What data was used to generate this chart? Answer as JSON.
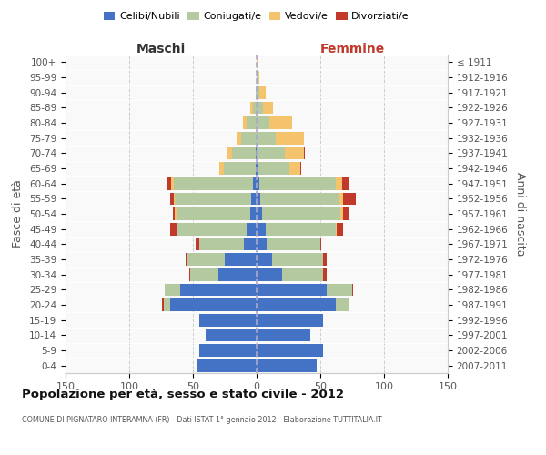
{
  "age_groups": [
    "0-4",
    "5-9",
    "10-14",
    "15-19",
    "20-24",
    "25-29",
    "30-34",
    "35-39",
    "40-44",
    "45-49",
    "50-54",
    "55-59",
    "60-64",
    "65-69",
    "70-74",
    "75-79",
    "80-84",
    "85-89",
    "90-94",
    "95-99",
    "100+"
  ],
  "birth_years": [
    "2007-2011",
    "2002-2006",
    "1997-2001",
    "1992-1996",
    "1987-1991",
    "1982-1986",
    "1977-1981",
    "1972-1976",
    "1967-1971",
    "1962-1966",
    "1957-1961",
    "1952-1956",
    "1947-1951",
    "1942-1946",
    "1937-1941",
    "1932-1936",
    "1927-1931",
    "1922-1926",
    "1917-1921",
    "1912-1916",
    "≤ 1911"
  ],
  "maschi_celibe": [
    47,
    45,
    40,
    45,
    68,
    60,
    30,
    25,
    10,
    8,
    5,
    4,
    3,
    1,
    1,
    0,
    0,
    0,
    0,
    0,
    0
  ],
  "maschi_coniugato": [
    0,
    0,
    0,
    0,
    5,
    12,
    22,
    30,
    35,
    55,
    58,
    60,
    62,
    25,
    18,
    12,
    8,
    3,
    1,
    0,
    0
  ],
  "maschi_vedovo": [
    0,
    0,
    0,
    0,
    0,
    0,
    0,
    0,
    0,
    0,
    1,
    1,
    2,
    3,
    4,
    4,
    3,
    2,
    0,
    0,
    0
  ],
  "maschi_divorziato": [
    0,
    0,
    0,
    0,
    1,
    0,
    1,
    1,
    3,
    5,
    2,
    3,
    3,
    0,
    0,
    0,
    0,
    0,
    0,
    0,
    0
  ],
  "femmine_nubile": [
    47,
    52,
    42,
    52,
    62,
    55,
    20,
    12,
    8,
    7,
    4,
    3,
    2,
    1,
    0,
    0,
    0,
    0,
    0,
    0,
    0
  ],
  "femmine_coniugata": [
    0,
    0,
    0,
    0,
    10,
    20,
    32,
    40,
    42,
    55,
    62,
    62,
    60,
    25,
    22,
    15,
    10,
    5,
    2,
    1,
    0
  ],
  "femmine_vedova": [
    0,
    0,
    0,
    0,
    0,
    0,
    0,
    0,
    0,
    1,
    2,
    3,
    5,
    8,
    15,
    22,
    18,
    8,
    5,
    1,
    1
  ],
  "femmine_divorziata": [
    0,
    0,
    0,
    0,
    0,
    1,
    3,
    3,
    1,
    5,
    4,
    10,
    5,
    1,
    1,
    0,
    0,
    0,
    0,
    0,
    0
  ],
  "color_celibe": "#4472c4",
  "color_coniugato": "#b5c9a0",
  "color_vedovo": "#f5c36b",
  "color_divorziato": "#c0392b",
  "title": "Popolazione per età, sesso e stato civile - 2012",
  "subtitle": "COMUNE DI PIGNATARO INTERAMNA (FR) - Dati ISTAT 1° gennaio 2012 - Elaborazione TUTTITALIA.IT",
  "label_maschi": "Maschi",
  "label_femmine": "Femmine",
  "label_fasce": "Fasce di età",
  "label_anni": "Anni di nascita",
  "leg_celibe": "Celibi/Nubili",
  "leg_coniugato": "Coniugati/e",
  "leg_vedovo": "Vedovi/e",
  "leg_divorziato": "Divorziati/e",
  "xlim": 150,
  "bg_color": "#f9f9f9"
}
